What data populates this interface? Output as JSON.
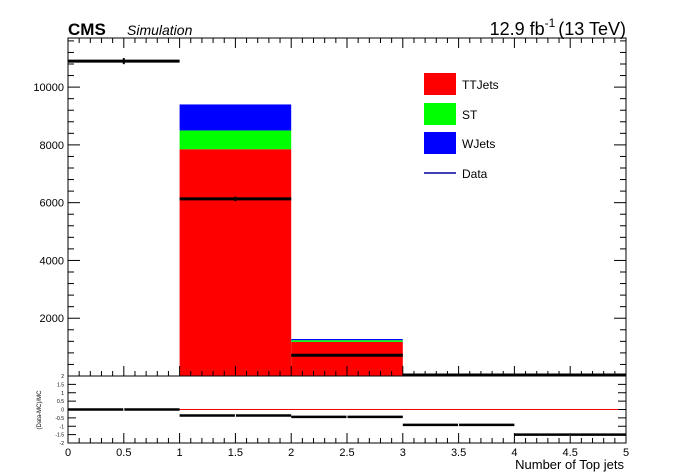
{
  "header": {
    "experiment": "CMS",
    "tag": "Simulation",
    "lumi_value": "12.9 fb",
    "lumi_exp": "-1",
    "energy": "(13 TeV)"
  },
  "chart_data": [
    {
      "type": "bar",
      "stacked": true,
      "bin_edges": [
        0,
        1,
        2,
        3,
        4,
        5
      ],
      "series": [
        {
          "name": "TTJets",
          "color": "#ff0000",
          "values": [
            0,
            7850,
            1180,
            20,
            0
          ]
        },
        {
          "name": "ST",
          "color": "#00ff00",
          "values": [
            0,
            650,
            60,
            0,
            0
          ]
        },
        {
          "name": "WJets",
          "color": "#0000ff",
          "values": [
            0,
            900,
            40,
            0,
            0
          ]
        }
      ],
      "data_points": {
        "name": "Data",
        "color": "#000099",
        "x": [
          0.5,
          1.5,
          2.5,
          3.5,
          4.5
        ],
        "y": [
          10900,
          6130,
          720,
          0,
          0
        ],
        "yerr": [
          105,
          78,
          27,
          0,
          0
        ]
      },
      "xlim": [
        0,
        5
      ],
      "ylim": [
        0,
        11700
      ],
      "yticks": [
        2000,
        4000,
        6000,
        8000,
        10000
      ],
      "ytick_labels": [
        "2000",
        "4000",
        "6000",
        "8000",
        "10000"
      ],
      "legend": {
        "position": "top-right",
        "entries": [
          "TTJets",
          "ST",
          "WJets",
          "Data"
        ]
      }
    },
    {
      "type": "scatter",
      "ylabel": "(Data-MC)/MC",
      "xlabel": "Number of Top jets",
      "x": [
        0.5,
        1.5,
        2.5,
        3.5,
        4.5
      ],
      "y": [
        0.0,
        -0.36,
        -0.44,
        -0.92,
        -1.5
      ],
      "xerr": 0.5,
      "reference_line": 0,
      "reference_color": "#ff0000",
      "xlim": [
        0,
        5
      ],
      "ylim": [
        -2,
        2
      ],
      "yticks": [
        -2,
        -1.5,
        -1,
        -0.5,
        0,
        0.5,
        1,
        1.5,
        2
      ],
      "ytick_labels": [
        "-2",
        "-1.5",
        "-1",
        "-0.5",
        "0",
        "0.5",
        "1",
        "1.5",
        "2"
      ],
      "xticks": [
        0,
        0.5,
        1,
        1.5,
        2,
        2.5,
        3,
        3.5,
        4,
        4.5,
        5
      ],
      "xtick_labels": [
        "0",
        "0.5",
        "1",
        "1.5",
        "2",
        "2.5",
        "3",
        "3.5",
        "4",
        "4.5",
        "5"
      ]
    }
  ]
}
